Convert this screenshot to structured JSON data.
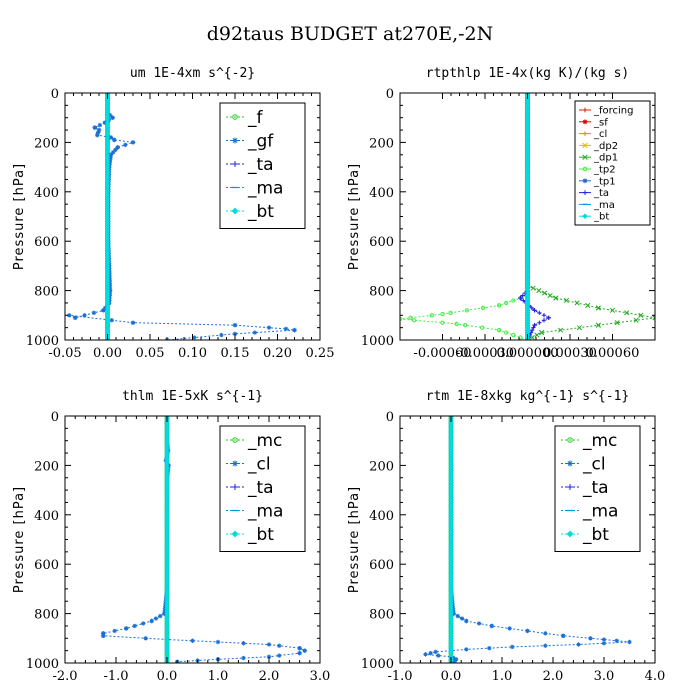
{
  "figure_title": "d92taus  BUDGET at270E,-2N",
  "chart_data": [
    {
      "type": "line",
      "title": "um   1E-4xm s^{-2}",
      "ylabel": "Pressure [hPa]",
      "xlim": [
        -0.05,
        0.25
      ],
      "ylim": [
        1000,
        0
      ],
      "xticks": [
        -0.05,
        0.0,
        0.05,
        0.1,
        0.15,
        0.2,
        0.25
      ],
      "xtick_labels": [
        "-0.05",
        "0.00",
        "0.05",
        "0.10",
        "0.15",
        "0.20",
        "0.25"
      ],
      "yticks": [
        0,
        200,
        400,
        600,
        800,
        1000
      ],
      "ytick_labels": [
        "0",
        "200",
        "400",
        "600",
        "800",
        "1000"
      ],
      "legend_style": "large",
      "legend_position": "top-right",
      "series": [
        {
          "name": "_f",
          "color": "#22cc22",
          "marker": "circle",
          "dense": true,
          "points": [
            [
              0.0,
              0
            ],
            [
              0.0,
              1000
            ]
          ]
        },
        {
          "name": "_gf",
          "color": "#1a6fd6",
          "marker": "star",
          "points": [
            [
              0.0,
              0
            ],
            [
              0.0,
              80
            ],
            [
              0.006,
              100
            ],
            [
              -0.003,
              120
            ],
            [
              -0.015,
              140
            ],
            [
              -0.01,
              150
            ],
            [
              -0.012,
              170
            ],
            [
              0.004,
              180
            ],
            [
              0.008,
              190
            ],
            [
              0.03,
              200
            ],
            [
              0.012,
              220
            ],
            [
              0.004,
              250
            ],
            [
              0.002,
              300
            ],
            [
              0.001,
              400
            ],
            [
              0.001,
              600
            ],
            [
              0.002,
              700
            ],
            [
              0.003,
              800
            ],
            [
              0.002,
              850
            ],
            [
              -0.005,
              880
            ],
            [
              -0.038,
              910
            ],
            [
              -0.045,
              900
            ],
            [
              0.03,
              930
            ],
            [
              0.15,
              940
            ],
            [
              0.21,
              955
            ],
            [
              0.22,
              960
            ],
            [
              0.15,
              975
            ],
            [
              0.07,
              1000
            ]
          ]
        },
        {
          "name": "_ta",
          "color": "#2222dd",
          "marker": "plus",
          "points": [
            [
              0.0,
              0
            ],
            [
              0.0,
              1000
            ]
          ]
        },
        {
          "name": "_ma",
          "color": "#0099ee",
          "marker": "dash",
          "points": [
            [
              0.0,
              0
            ],
            [
              0.0,
              1000
            ]
          ]
        },
        {
          "name": "_bt",
          "color": "#00dddd",
          "marker": "diamond",
          "points": [
            [
              0.0,
              0
            ],
            [
              0.0,
              1000
            ]
          ]
        }
      ]
    },
    {
      "type": "line",
      "title": "rtpthlp   1E-4x(kg K)/(kg s)",
      "ylabel": "Pressure [hPa]",
      "xlim": [
        -0.0009,
        0.0009
      ],
      "ylim": [
        1000,
        0
      ],
      "xticks": [
        -0.0006,
        -0.0003,
        0.0,
        0.0003,
        0.0006
      ],
      "xtick_labels": [
        "-0.00060",
        "-0.00030",
        "0.000000",
        "0.00030",
        "0.00060"
      ],
      "yticks": [
        0,
        200,
        400,
        600,
        800,
        1000
      ],
      "ytick_labels": [
        "0",
        "200",
        "400",
        "600",
        "800",
        "1000"
      ],
      "legend_style": "small",
      "legend_position": "top-right",
      "series": [
        {
          "name": "_forcing",
          "color": "#cc2200",
          "marker": "plus",
          "points": [
            [
              0.0,
              0
            ],
            [
              0.0,
              1000
            ]
          ]
        },
        {
          "name": "_sf",
          "color": "#dd0000",
          "marker": "star",
          "dense": true,
          "points": [
            [
              0.0,
              0
            ],
            [
              0.0,
              1000
            ]
          ]
        },
        {
          "name": "_cl",
          "color": "#ee8800",
          "marker": "plus",
          "points": [
            [
              0.0,
              0
            ],
            [
              0.0,
              1000
            ]
          ]
        },
        {
          "name": "_dp2",
          "color": "#ddbb00",
          "marker": "x",
          "points": [
            [
              0.0,
              0
            ],
            [
              0.0,
              1000
            ]
          ]
        },
        {
          "name": "_dp1",
          "color": "#22aa22",
          "marker": "x",
          "points": [
            [
              0.0,
              0
            ],
            [
              0.0,
              780
            ],
            [
              0.0002,
              830
            ],
            [
              0.0005,
              870
            ],
            [
              0.0009,
              910
            ],
            [
              0.0005,
              940
            ],
            [
              0.0001,
              970
            ],
            [
              0.0,
              1000
            ]
          ]
        },
        {
          "name": "_tp2",
          "color": "#44ee44",
          "marker": "circle",
          "points": [
            [
              0.0,
              0
            ],
            [
              0.0,
              820
            ],
            [
              -0.0002,
              860
            ],
            [
              -0.0006,
              895
            ],
            [
              -0.0009,
              915
            ],
            [
              -0.0005,
              935
            ],
            [
              -0.0002,
              960
            ],
            [
              0.0,
              1000
            ]
          ]
        },
        {
          "name": "_tp1",
          "color": "#2266cc",
          "marker": "star",
          "points": [
            [
              0.0,
              0
            ],
            [
              0.0,
              1000
            ]
          ]
        },
        {
          "name": "_ta",
          "color": "#2222dd",
          "marker": "plus",
          "points": [
            [
              0.0,
              0
            ],
            [
              0.0,
              800
            ],
            [
              -5e-05,
              830
            ],
            [
              5e-05,
              880
            ],
            [
              0.00015,
              910
            ],
            [
              5e-05,
              940
            ],
            [
              0.0,
              1000
            ]
          ]
        },
        {
          "name": "_ma",
          "color": "#0099ee",
          "marker": "dash",
          "points": [
            [
              0.0,
              0
            ],
            [
              0.0,
              1000
            ]
          ]
        },
        {
          "name": "_bt",
          "color": "#00dddd",
          "marker": "diamond",
          "points": [
            [
              0.0,
              0
            ],
            [
              0.0,
              1000
            ]
          ]
        }
      ]
    },
    {
      "type": "line",
      "title": "thlm   1E-5xK  s^{-1}",
      "ylabel": "Pressure [hPa]",
      "xlim": [
        -2.0,
        3.0
      ],
      "ylim": [
        1000,
        0
      ],
      "xticks": [
        -2.0,
        -1.0,
        0.0,
        1.0,
        2.0,
        3.0
      ],
      "xtick_labels": [
        "-2.0",
        "-1.0",
        "0.0",
        "1.0",
        "2.0",
        "3.0"
      ],
      "yticks": [
        0,
        200,
        400,
        600,
        800,
        1000
      ],
      "ytick_labels": [
        "0",
        "200",
        "400",
        "600",
        "800",
        "1000"
      ],
      "legend_style": "large",
      "legend_position": "top-right",
      "series": [
        {
          "name": "_mc",
          "color": "#22cc22",
          "marker": "circle",
          "dense": true,
          "points": [
            [
              0.0,
              0
            ],
            [
              0.0,
              1000
            ]
          ]
        },
        {
          "name": "_cl",
          "color": "#1a6fd6",
          "marker": "star",
          "points": [
            [
              0.0,
              0
            ],
            [
              0.0,
              100
            ],
            [
              0.02,
              140
            ],
            [
              -0.02,
              180
            ],
            [
              0.03,
              200
            ],
            [
              0.0,
              250
            ],
            [
              0.0,
              700
            ],
            [
              -0.05,
              800
            ],
            [
              -0.3,
              830
            ],
            [
              -0.8,
              860
            ],
            [
              -1.25,
              880
            ],
            [
              -1.25,
              890
            ],
            [
              0.0,
              905
            ],
            [
              1.0,
              915
            ],
            [
              2.0,
              925
            ],
            [
              2.6,
              940
            ],
            [
              2.7,
              950
            ],
            [
              2.6,
              960
            ],
            [
              2.0,
              975
            ],
            [
              1.0,
              985
            ],
            [
              0.2,
              995
            ]
          ]
        },
        {
          "name": "_ta",
          "color": "#2222dd",
          "marker": "plus",
          "points": [
            [
              0.0,
              0
            ],
            [
              0.0,
              1000
            ]
          ]
        },
        {
          "name": "_ma",
          "color": "#0099ee",
          "marker": "dash",
          "points": [
            [
              0.0,
              0
            ],
            [
              0.0,
              1000
            ]
          ]
        },
        {
          "name": "_bt",
          "color": "#00dddd",
          "marker": "diamond",
          "points": [
            [
              0.0,
              0
            ],
            [
              0.0,
              1000
            ]
          ]
        }
      ]
    },
    {
      "type": "line",
      "title": "rtm   1E-8xkg kg^{-1} s^{-1}",
      "ylabel": "Pressure [hPa]",
      "xlim": [
        -1.0,
        4.0
      ],
      "ylim": [
        1000,
        0
      ],
      "xticks": [
        -1.0,
        0.0,
        1.0,
        2.0,
        3.0,
        4.0
      ],
      "xtick_labels": [
        "-1.0",
        "0.0",
        "1.0",
        "2.0",
        "3.0",
        "4.0"
      ],
      "yticks": [
        0,
        200,
        400,
        600,
        800,
        1000
      ],
      "ytick_labels": [
        "0",
        "200",
        "400",
        "600",
        "800",
        "1000"
      ],
      "legend_style": "large",
      "legend_position": "top-right",
      "series": [
        {
          "name": "_mc",
          "color": "#22cc22",
          "marker": "circle",
          "dense": true,
          "points": [
            [
              0.0,
              0
            ],
            [
              0.0,
              1000
            ]
          ]
        },
        {
          "name": "_cl",
          "color": "#1a6fd6",
          "marker": "star",
          "points": [
            [
              0.0,
              0
            ],
            [
              0.0,
              700
            ],
            [
              0.05,
              800
            ],
            [
              0.3,
              830
            ],
            [
              0.8,
              850
            ],
            [
              1.5,
              870
            ],
            [
              2.2,
              890
            ],
            [
              3.0,
              905
            ],
            [
              3.5,
              915
            ],
            [
              2.5,
              925
            ],
            [
              1.2,
              935
            ],
            [
              0.3,
              945
            ],
            [
              -0.3,
              955
            ],
            [
              -0.5,
              965
            ],
            [
              0.0,
              975
            ],
            [
              0.1,
              985
            ],
            [
              0.05,
              1000
            ]
          ]
        },
        {
          "name": "_ta",
          "color": "#2222dd",
          "marker": "plus",
          "points": [
            [
              0.0,
              0
            ],
            [
              0.0,
              1000
            ]
          ]
        },
        {
          "name": "_ma",
          "color": "#0099ee",
          "marker": "dash",
          "points": [
            [
              0.0,
              0
            ],
            [
              0.0,
              1000
            ]
          ]
        },
        {
          "name": "_bt",
          "color": "#00dddd",
          "marker": "diamond",
          "points": [
            [
              0.0,
              0
            ],
            [
              0.0,
              1000
            ]
          ]
        }
      ]
    }
  ]
}
